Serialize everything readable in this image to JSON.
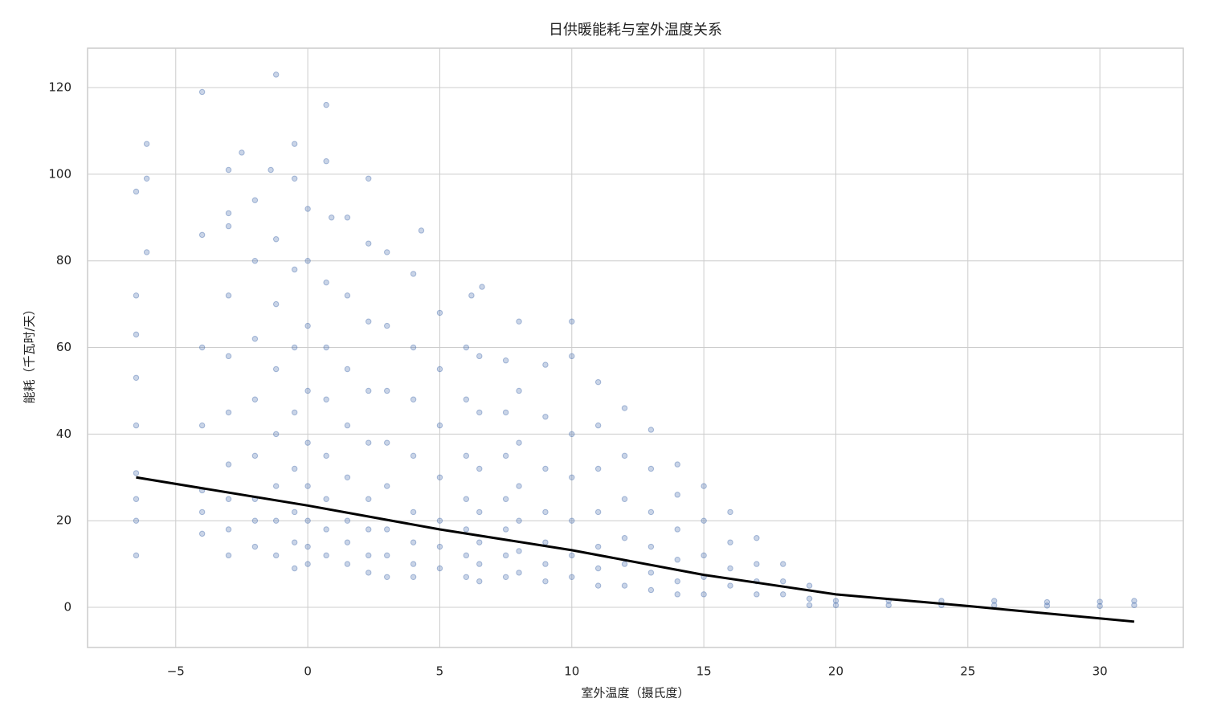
{
  "chart_data": {
    "type": "scatter",
    "title": "日供暖能耗与室外温度关系",
    "x_label": "室外温度（摄氏度）",
    "y_label": "能耗（千瓦时/天）",
    "color": "#4c72b0",
    "x": [
      -6.5,
      -6.5,
      -6.5,
      -6.5,
      -6.5,
      -6.5,
      -6.5,
      -6.5,
      -6.5,
      -6.1,
      -6.1,
      -6.1,
      -4,
      -4,
      -4,
      -4,
      -4,
      -4,
      -4,
      -3,
      -3,
      -3,
      -3,
      -3,
      -3,
      -3,
      -3,
      -3,
      -3,
      -2.5,
      -2,
      -2,
      -2,
      -2,
      -2,
      -2,
      -2,
      -2,
      -1.2,
      -1.4,
      -1.2,
      -1.2,
      -1.2,
      -1.2,
      -1.2,
      -1.2,
      -1.2,
      -0.5,
      -0.5,
      -0.5,
      -0.5,
      -0.5,
      -0.5,
      -0.5,
      -0.5,
      -0.5,
      0,
      0,
      0,
      0,
      0,
      0,
      0,
      0,
      0,
      0.7,
      0.7,
      0.9,
      0.7,
      0.7,
      0.7,
      0.7,
      0.7,
      0.7,
      0.7,
      1.5,
      1.5,
      1.5,
      1.5,
      1.5,
      1.5,
      1.5,
      1.5,
      2.3,
      2.3,
      2.3,
      2.3,
      2.3,
      2.3,
      2.3,
      2.3,
      2.3,
      3,
      3,
      3,
      3,
      3,
      3,
      3,
      3,
      4.3,
      4,
      4,
      4,
      4,
      4,
      4,
      4,
      4,
      5,
      5,
      5,
      5,
      5,
      5,
      5,
      6.2,
      6,
      6,
      6,
      6,
      6,
      6,
      6,
      6.6,
      6.5,
      6.5,
      6.5,
      6.5,
      6.5,
      6.5,
      6.5,
      7.5,
      7.5,
      7.5,
      7.5,
      7.5,
      7.5,
      7.5,
      8,
      8,
      8,
      8,
      8,
      8,
      8,
      9,
      9,
      9,
      9,
      9,
      9,
      9,
      10,
      10,
      10,
      10,
      10,
      10,
      10,
      11,
      11,
      11,
      11,
      11,
      11,
      11,
      12,
      12,
      12,
      12,
      12,
      12,
      13,
      13,
      13,
      13,
      13,
      13,
      14,
      14,
      14,
      14,
      14,
      14,
      15,
      15,
      15,
      15,
      15,
      16,
      16,
      16,
      16,
      17,
      17,
      17,
      17,
      18,
      18,
      18,
      19,
      19,
      19,
      20,
      20,
      22,
      22,
      24,
      24,
      26,
      26,
      28,
      28,
      30,
      30,
      31.3,
      31.3
    ],
    "values": [
      96,
      72,
      63,
      53,
      42,
      31,
      25,
      20,
      12,
      107,
      99,
      82,
      119,
      86,
      60,
      42,
      27,
      22,
      17,
      91,
      88,
      72,
      58,
      45,
      33,
      25,
      18,
      12,
      101,
      105,
      94,
      80,
      62,
      48,
      35,
      25,
      20,
      14,
      123,
      101,
      85,
      70,
      55,
      40,
      28,
      20,
      12,
      107,
      99,
      78,
      60,
      45,
      32,
      22,
      15,
      9,
      92,
      80,
      65,
      50,
      38,
      28,
      20,
      14,
      10,
      116,
      103,
      90,
      75,
      60,
      48,
      35,
      25,
      18,
      12,
      90,
      72,
      55,
      42,
      30,
      20,
      15,
      10,
      99,
      84,
      66,
      50,
      38,
      25,
      18,
      12,
      8,
      82,
      65,
      50,
      38,
      28,
      18,
      12,
      7,
      87,
      77,
      60,
      48,
      35,
      22,
      15,
      10,
      7,
      68,
      55,
      42,
      30,
      20,
      14,
      9,
      72,
      60,
      48,
      35,
      25,
      18,
      12,
      7,
      74,
      58,
      45,
      32,
      22,
      15,
      10,
      6,
      57,
      45,
      35,
      25,
      18,
      12,
      7,
      66,
      50,
      38,
      28,
      20,
      13,
      8,
      56,
      44,
      32,
      22,
      15,
      10,
      6,
      66,
      58,
      40,
      30,
      20,
      12,
      7,
      52,
      42,
      32,
      22,
      14,
      9,
      5,
      46,
      35,
      25,
      16,
      10,
      5,
      41,
      32,
      22,
      14,
      8,
      4,
      33,
      26,
      18,
      11,
      6,
      3,
      28,
      20,
      12,
      7,
      3,
      22,
      15,
      9,
      5,
      16,
      10,
      6,
      3,
      10,
      6,
      3,
      5,
      2,
      0.5,
      1.5,
      0.5,
      1.5,
      0.5,
      1.5,
      0.5,
      1.5,
      0.5,
      1.2,
      0.4,
      1.3,
      0.3,
      1.5,
      0.5
    ],
    "trend_line": {
      "color": "#000000",
      "x": [
        -6.5,
        0,
        5,
        10,
        15,
        20,
        25,
        31.3
      ],
      "values": [
        30,
        23.5,
        18,
        13.2,
        7.5,
        3,
        0.3,
        -3.3
      ]
    },
    "xlim": [
      -8.34,
      33.16
    ],
    "ylim": [
      -9.27,
      129.1
    ],
    "xticks": [
      {
        "value": -5,
        "label": "−5"
      },
      0,
      5,
      10,
      15,
      20,
      25,
      30
    ],
    "yticks": [
      0,
      20,
      40,
      60,
      80,
      100,
      120
    ],
    "grid": true
  }
}
